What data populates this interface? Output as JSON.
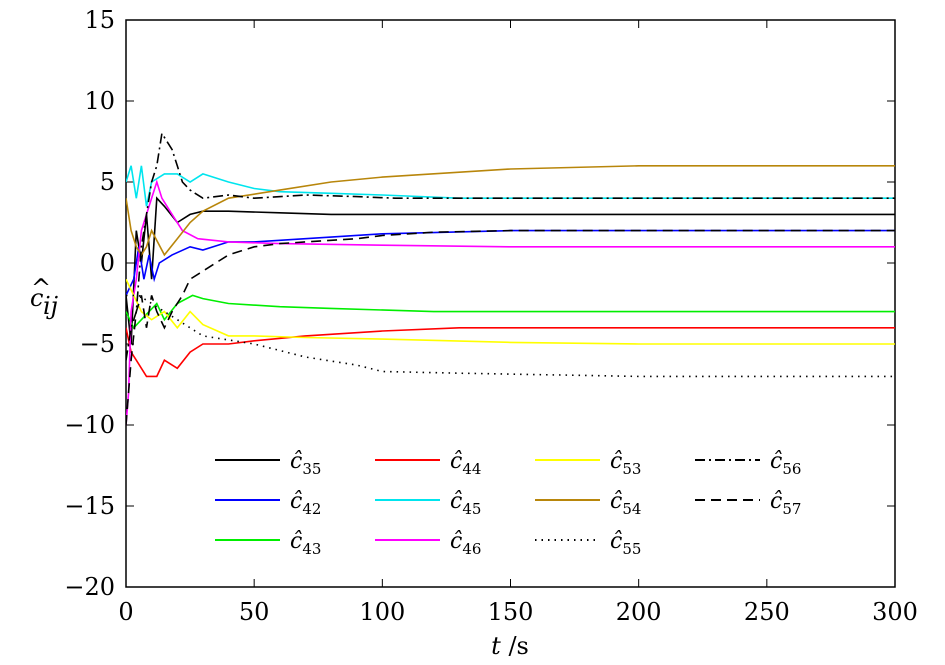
{
  "chart_data": {
    "type": "line",
    "xlabel": "t /s",
    "ylabel": "ĉij",
    "xlim": [
      0,
      300
    ],
    "ylim": [
      -20,
      15
    ],
    "xticks": [
      0,
      50,
      100,
      150,
      200,
      250,
      300
    ],
    "yticks": [
      -20,
      -15,
      -10,
      -5,
      0,
      5,
      10,
      15
    ],
    "xtick_labels": [
      "0",
      "50",
      "100",
      "150",
      "200",
      "250",
      "300"
    ],
    "ytick_labels": [
      "−20",
      "−15",
      "−10",
      "−5",
      "0",
      "5",
      "10",
      "15"
    ],
    "grid": false,
    "legend_position": "lower-center",
    "series": [
      {
        "name": "ĉ35",
        "sub": "35",
        "color": "#000000",
        "dash": "solid",
        "points": [
          [
            0,
            -2
          ],
          [
            2,
            -5
          ],
          [
            4,
            2
          ],
          [
            6,
            0
          ],
          [
            8,
            3
          ],
          [
            10,
            -1
          ],
          [
            12,
            4
          ],
          [
            15,
            3.5
          ],
          [
            20,
            2.5
          ],
          [
            25,
            3
          ],
          [
            30,
            3.2
          ],
          [
            40,
            3.2
          ],
          [
            60,
            3.1
          ],
          [
            80,
            3
          ],
          [
            120,
            3
          ],
          [
            200,
            3
          ],
          [
            300,
            3
          ]
        ]
      },
      {
        "name": "ĉ42",
        "sub": "42",
        "color": "#0000ff",
        "dash": "solid",
        "points": [
          [
            0,
            -2
          ],
          [
            3,
            -1
          ],
          [
            5,
            1
          ],
          [
            7,
            -1
          ],
          [
            9,
            0.5
          ],
          [
            11,
            -1
          ],
          [
            13,
            0
          ],
          [
            18,
            0.5
          ],
          [
            25,
            1
          ],
          [
            30,
            0.8
          ],
          [
            40,
            1.3
          ],
          [
            50,
            1.3
          ],
          [
            70,
            1.5
          ],
          [
            100,
            1.8
          ],
          [
            150,
            2
          ],
          [
            200,
            2
          ],
          [
            300,
            2
          ]
        ]
      },
      {
        "name": "ĉ43",
        "sub": "43",
        "color": "#00ee00",
        "dash": "solid",
        "points": [
          [
            0,
            -3
          ],
          [
            3,
            -4
          ],
          [
            6,
            -3.5
          ],
          [
            9,
            -3
          ],
          [
            12,
            -2.5
          ],
          [
            15,
            -3.5
          ],
          [
            20,
            -2.5
          ],
          [
            26,
            -2
          ],
          [
            30,
            -2.2
          ],
          [
            40,
            -2.5
          ],
          [
            60,
            -2.7
          ],
          [
            80,
            -2.8
          ],
          [
            120,
            -3
          ],
          [
            200,
            -3
          ],
          [
            300,
            -3
          ]
        ]
      },
      {
        "name": "ĉ44",
        "sub": "44",
        "color": "#ff0000",
        "dash": "solid",
        "points": [
          [
            0,
            -4
          ],
          [
            2,
            -5.5
          ],
          [
            4,
            -6
          ],
          [
            6,
            -6.5
          ],
          [
            8,
            -7
          ],
          [
            12,
            -7
          ],
          [
            15,
            -6
          ],
          [
            20,
            -6.5
          ],
          [
            25,
            -5.5
          ],
          [
            30,
            -5
          ],
          [
            40,
            -5
          ],
          [
            50,
            -4.8
          ],
          [
            70,
            -4.5
          ],
          [
            100,
            -4.2
          ],
          [
            130,
            -4
          ],
          [
            200,
            -4
          ],
          [
            300,
            -4
          ]
        ]
      },
      {
        "name": "ĉ45",
        "sub": "45",
        "color": "#00e5ee",
        "dash": "solid",
        "points": [
          [
            0,
            5
          ],
          [
            2,
            6
          ],
          [
            4,
            4
          ],
          [
            6,
            6
          ],
          [
            8,
            3.5
          ],
          [
            10,
            5
          ],
          [
            15,
            5.5
          ],
          [
            20,
            5.5
          ],
          [
            25,
            5
          ],
          [
            30,
            5.5
          ],
          [
            40,
            5
          ],
          [
            50,
            4.6
          ],
          [
            60,
            4.4
          ],
          [
            80,
            4.3
          ],
          [
            100,
            4.2
          ],
          [
            130,
            4
          ],
          [
            200,
            4
          ],
          [
            300,
            4
          ]
        ]
      },
      {
        "name": "ĉ46",
        "sub": "46",
        "color": "#ff00ff",
        "dash": "solid",
        "points": [
          [
            0,
            -10
          ],
          [
            1,
            -8
          ],
          [
            2,
            -3
          ],
          [
            4,
            -1
          ],
          [
            6,
            2
          ],
          [
            8,
            3
          ],
          [
            10,
            4
          ],
          [
            12,
            5
          ],
          [
            14,
            4
          ],
          [
            18,
            3
          ],
          [
            22,
            2
          ],
          [
            28,
            1.5
          ],
          [
            40,
            1.3
          ],
          [
            60,
            1.2
          ],
          [
            100,
            1.1
          ],
          [
            150,
            1
          ],
          [
            300,
            1
          ]
        ]
      },
      {
        "name": "ĉ53",
        "sub": "53",
        "color": "#ffff00",
        "dash": "solid",
        "points": [
          [
            0,
            -1
          ],
          [
            3,
            -2
          ],
          [
            6,
            -3
          ],
          [
            10,
            -3.5
          ],
          [
            15,
            -3
          ],
          [
            20,
            -4
          ],
          [
            25,
            -3
          ],
          [
            30,
            -3.8
          ],
          [
            40,
            -4.5
          ],
          [
            50,
            -4.5
          ],
          [
            70,
            -4.6
          ],
          [
            100,
            -4.7
          ],
          [
            150,
            -4.9
          ],
          [
            200,
            -5
          ],
          [
            300,
            -5
          ]
        ]
      },
      {
        "name": "ĉ54",
        "sub": "54",
        "color": "#b8860b",
        "dash": "solid",
        "points": [
          [
            0,
            4
          ],
          [
            2,
            2
          ],
          [
            4,
            1
          ],
          [
            6,
            0.5
          ],
          [
            8,
            1
          ],
          [
            10,
            2
          ],
          [
            15,
            0.5
          ],
          [
            20,
            1.5
          ],
          [
            25,
            2.5
          ],
          [
            30,
            3.2
          ],
          [
            40,
            4
          ],
          [
            60,
            4.5
          ],
          [
            80,
            5
          ],
          [
            100,
            5.3
          ],
          [
            150,
            5.8
          ],
          [
            200,
            6
          ],
          [
            300,
            6
          ]
        ]
      },
      {
        "name": "ĉ55",
        "sub": "55",
        "color": "#000000",
        "dash": "dotted",
        "points": [
          [
            0,
            -2
          ],
          [
            5,
            -2
          ],
          [
            10,
            -2.5
          ],
          [
            20,
            -3.5
          ],
          [
            30,
            -4.5
          ],
          [
            50,
            -5
          ],
          [
            70,
            -5.8
          ],
          [
            90,
            -6.3
          ],
          [
            100,
            -6.7
          ],
          [
            130,
            -6.8
          ],
          [
            200,
            -7
          ],
          [
            300,
            -7
          ]
        ]
      },
      {
        "name": "ĉ56",
        "sub": "56",
        "color": "#000000",
        "dash": "dashdot",
        "points": [
          [
            0,
            -6
          ],
          [
            2,
            -4
          ],
          [
            4,
            -3
          ],
          [
            6,
            1
          ],
          [
            8,
            3
          ],
          [
            10,
            5
          ],
          [
            12,
            6
          ],
          [
            14,
            8
          ],
          [
            16,
            7.5
          ],
          [
            18,
            7
          ],
          [
            20,
            6
          ],
          [
            22,
            5
          ],
          [
            25,
            4.5
          ],
          [
            30,
            4
          ],
          [
            40,
            4.2
          ],
          [
            50,
            4
          ],
          [
            70,
            4.2
          ],
          [
            90,
            4.1
          ],
          [
            105,
            4
          ],
          [
            150,
            4
          ],
          [
            200,
            4
          ],
          [
            300,
            4
          ]
        ]
      },
      {
        "name": "ĉ57",
        "sub": "57",
        "color": "#000000",
        "dash": "dashed",
        "points": [
          [
            0,
            -10
          ],
          [
            2,
            -6
          ],
          [
            4,
            -3
          ],
          [
            6,
            -2
          ],
          [
            8,
            -4
          ],
          [
            10,
            -2
          ],
          [
            12,
            -3
          ],
          [
            15,
            -4
          ],
          [
            18,
            -3
          ],
          [
            22,
            -2
          ],
          [
            25,
            -1
          ],
          [
            30,
            -0.5
          ],
          [
            35,
            0
          ],
          [
            40,
            0.5
          ],
          [
            50,
            1
          ],
          [
            60,
            1.2
          ],
          [
            80,
            1.4
          ],
          [
            90,
            1.5
          ],
          [
            100,
            1.7
          ],
          [
            120,
            1.9
          ],
          [
            150,
            2
          ],
          [
            200,
            2
          ],
          [
            300,
            2
          ]
        ]
      }
    ],
    "legend_order": [
      [
        "ĉ35",
        "ĉ44",
        "ĉ53",
        "ĉ56"
      ],
      [
        "ĉ42",
        "ĉ45",
        "ĉ54",
        "ĉ57"
      ],
      [
        "ĉ43",
        "ĉ46",
        "ĉ55"
      ]
    ]
  }
}
